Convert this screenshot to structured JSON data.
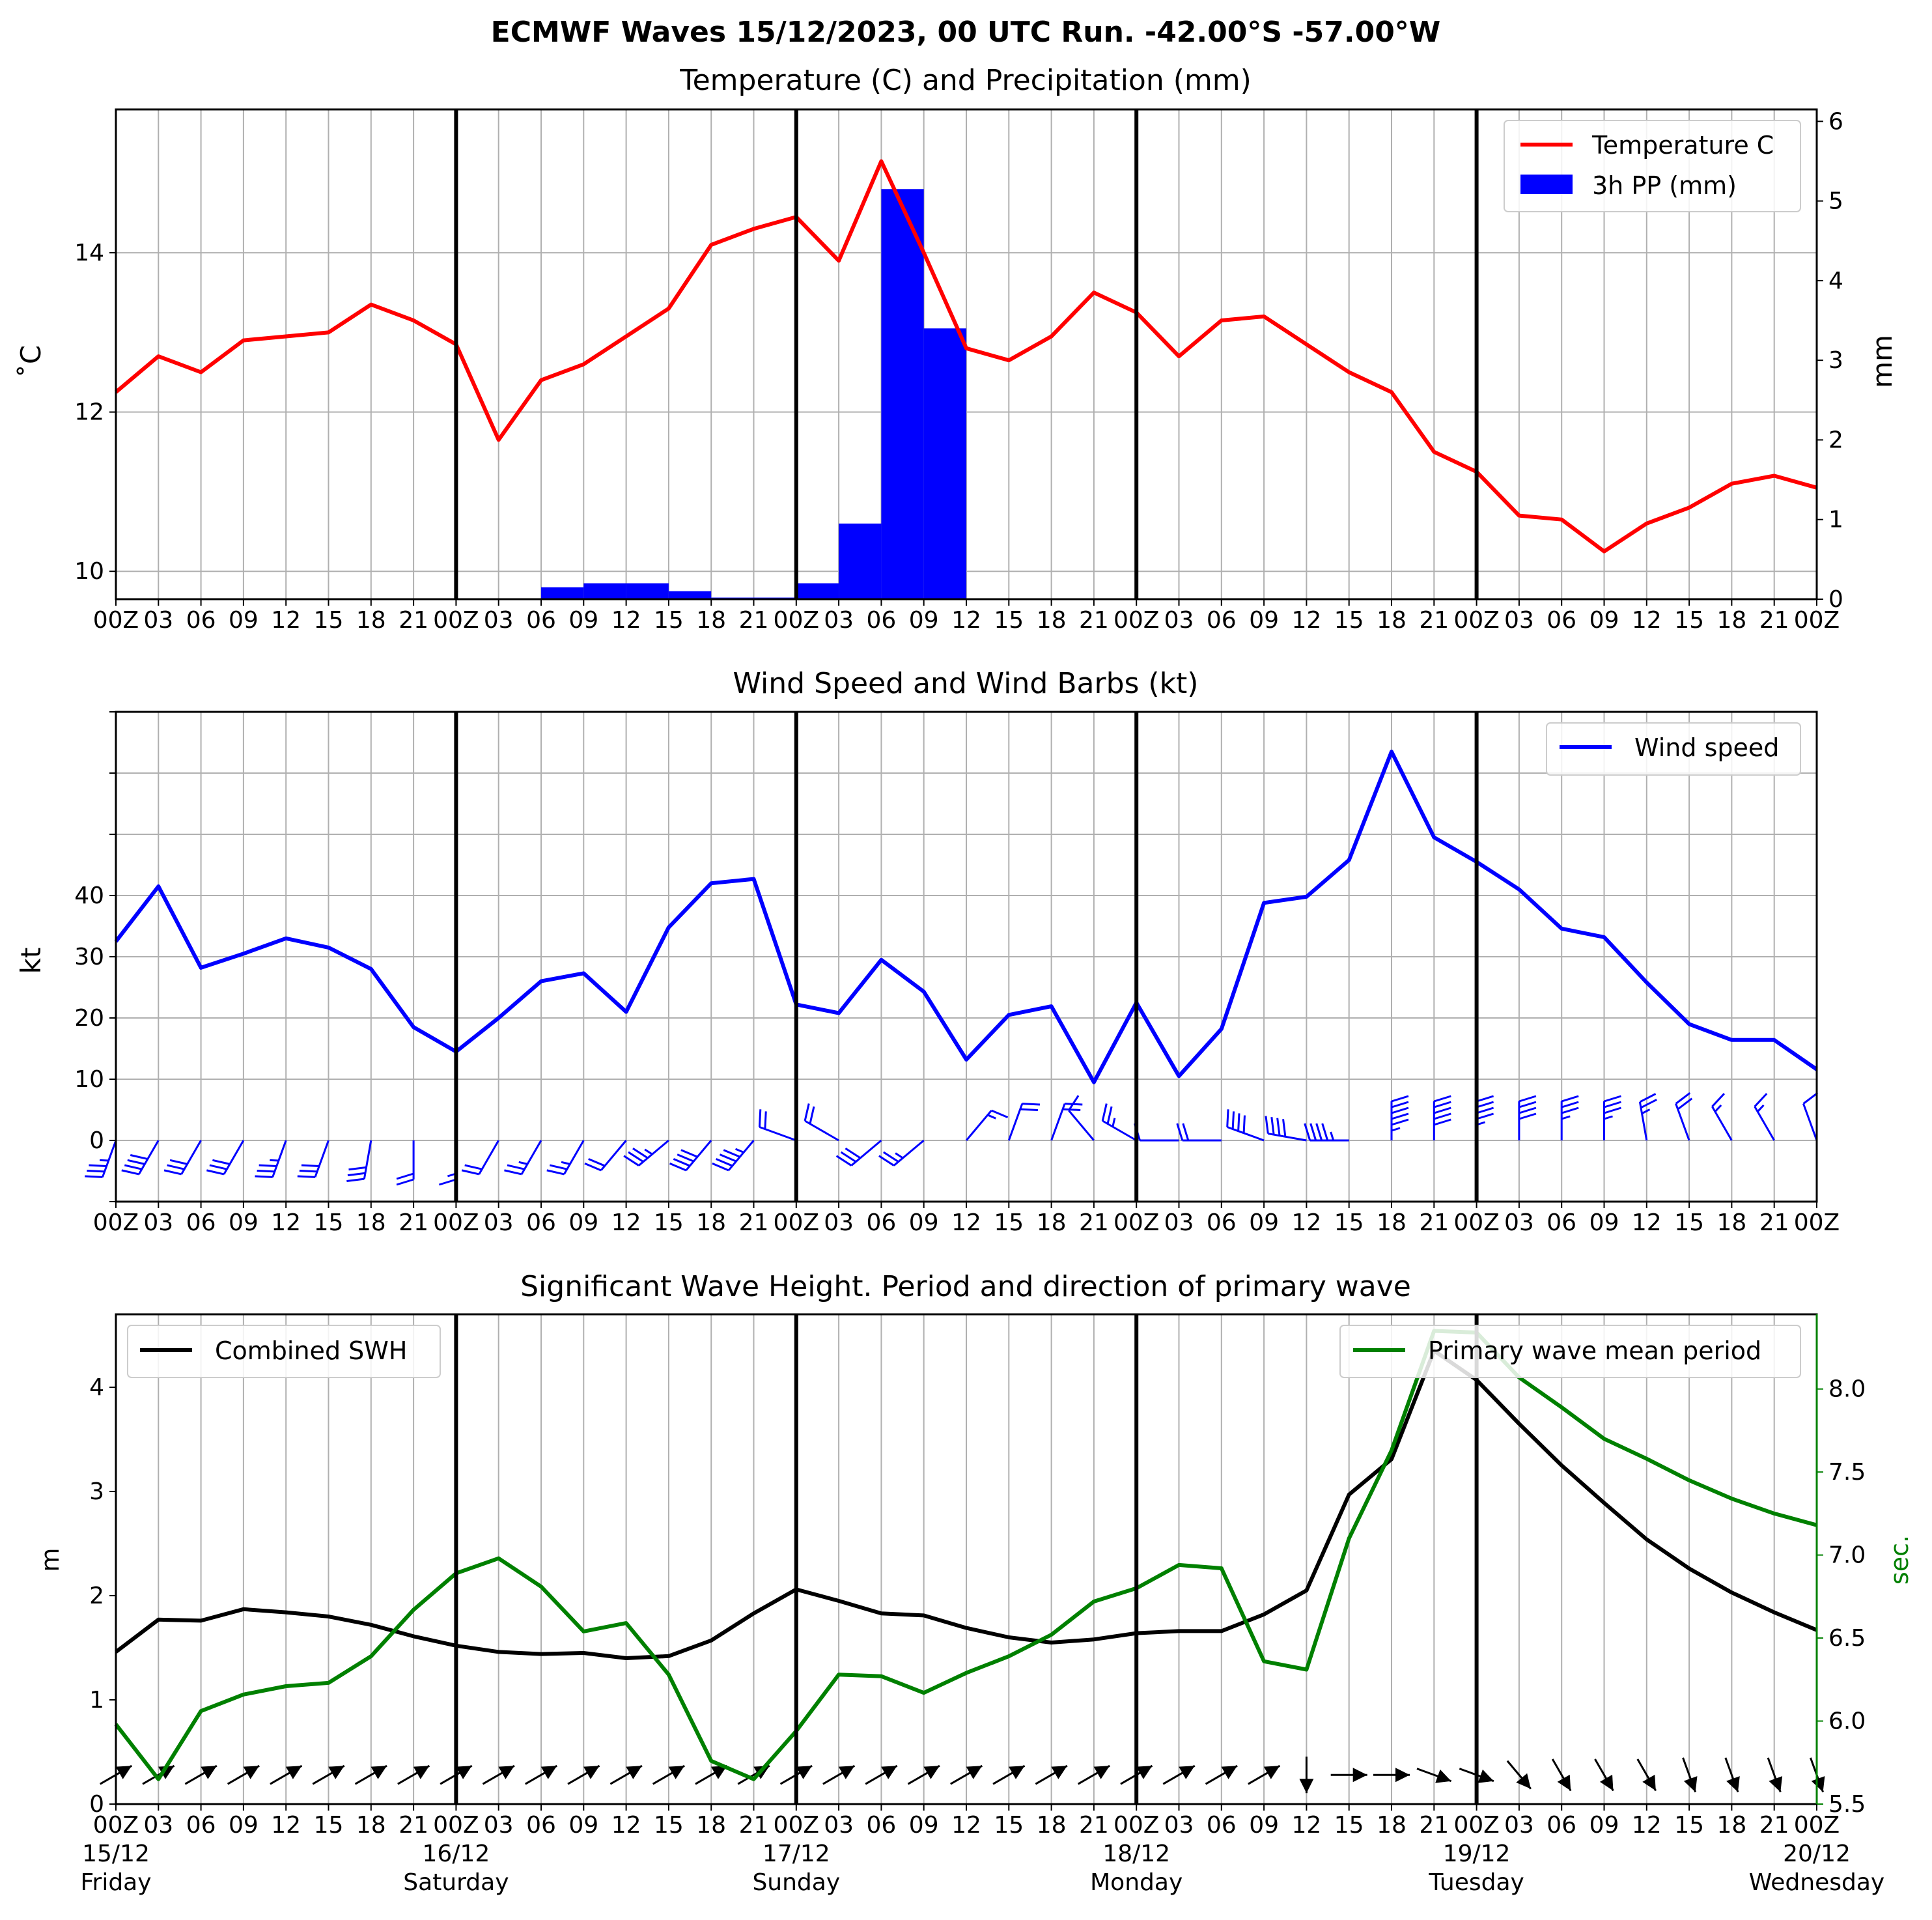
{
  "figure": {
    "title": "ECMWF Waves 15/12/2023, 00 UTC Run. -42.00°S -57.00°W"
  },
  "time_axis": {
    "hour_labels": [
      "00Z",
      "03",
      "06",
      "09",
      "12",
      "15",
      "18",
      "21",
      "00Z",
      "03",
      "06",
      "09",
      "12",
      "15",
      "18",
      "21",
      "00Z",
      "03",
      "06",
      "09",
      "12",
      "15",
      "18",
      "21",
      "00Z",
      "03",
      "06",
      "09",
      "12",
      "15",
      "18",
      "21",
      "00Z",
      "03",
      "06",
      "09",
      "12",
      "15",
      "18",
      "21",
      "00Z"
    ],
    "day_labels": [
      {
        "date": "15/12",
        "weekday": "Friday",
        "hour_index": 0
      },
      {
        "date": "16/12",
        "weekday": "Saturday",
        "hour_index": 8
      },
      {
        "date": "17/12",
        "weekday": "Sunday",
        "hour_index": 16
      },
      {
        "date": "18/12",
        "weekday": "Monday",
        "hour_index": 24
      },
      {
        "date": "19/12",
        "weekday": "Tuesday",
        "hour_index": 32
      },
      {
        "date": "20/12",
        "weekday": "Wednesday",
        "hour_index": 40
      }
    ]
  },
  "colors": {
    "temperature": "#ff0000",
    "precip": "#0000ff",
    "wind": "#0000ff",
    "swh": "#000000",
    "period": "#008000",
    "grid": "#b0b0b0",
    "day_divider": "#000000"
  },
  "chart_data": [
    {
      "type": "line",
      "title": "Temperature (C) and Precipitation (mm)",
      "ylabel": "$^\\circ$C",
      "ylabel_display": "˚C",
      "ylim": [
        9.65,
        15.8
      ],
      "yticks": [
        10,
        12,
        14
      ],
      "x_hours": [
        0,
        3,
        6,
        9,
        12,
        15,
        18,
        21,
        24,
        27,
        30,
        33,
        36,
        39,
        42,
        45,
        48,
        51,
        54,
        57,
        60,
        63,
        66,
        69,
        72,
        75,
        78,
        81,
        84,
        87,
        90,
        93,
        96,
        99,
        102,
        105,
        108,
        111,
        114,
        117,
        120
      ],
      "series": [
        {
          "name": "Temperature C",
          "axis": "left",
          "values": [
            12.25,
            12.7,
            12.5,
            12.9,
            12.95,
            13.0,
            13.35,
            13.15,
            12.85,
            11.65,
            12.4,
            12.6,
            12.95,
            13.3,
            14.1,
            14.3,
            14.45,
            13.9,
            15.15,
            14.0,
            12.8,
            12.65,
            12.95,
            13.5,
            13.25,
            12.7,
            13.15,
            13.2,
            12.85,
            12.5,
            12.25,
            11.5,
            11.25,
            10.7,
            10.65,
            10.25,
            10.6,
            10.8,
            11.1,
            11.2,
            11.05
          ]
        },
        {
          "name": "3h PP (mm)",
          "type": "bar",
          "axis": "right",
          "values": [
            0,
            0,
            0,
            0,
            0,
            0,
            0,
            0,
            0,
            0,
            0.15,
            0.2,
            0.2,
            0.1,
            0.02,
            0.02,
            0.2,
            0.95,
            5.15,
            3.4,
            0,
            0,
            0,
            0,
            0,
            0,
            0,
            0,
            0,
            0,
            0,
            0,
            0,
            0,
            0,
            0,
            0,
            0,
            0,
            0,
            0
          ]
        }
      ],
      "right_axis": {
        "ylabel": "mm",
        "ylim": [
          0,
          6.15
        ],
        "yticks": [
          0,
          1,
          2,
          3,
          4,
          5,
          6
        ]
      },
      "legend": "top-right",
      "grid": true
    },
    {
      "type": "line",
      "title": "Wind Speed and Wind Barbs (kt)",
      "ylabel": "kt",
      "ylim": [
        -10,
        70
      ],
      "yticks": [
        0,
        10,
        20,
        30,
        40
      ],
      "x_hours": [
        0,
        3,
        6,
        9,
        12,
        15,
        18,
        21,
        24,
        27,
        30,
        33,
        36,
        39,
        42,
        45,
        48,
        51,
        54,
        57,
        60,
        63,
        66,
        69,
        72,
        75,
        78,
        81,
        84,
        87,
        90,
        93,
        96,
        99,
        102,
        105,
        108,
        111,
        114,
        117,
        120
      ],
      "series": [
        {
          "name": "Wind speed",
          "values": [
            32.5,
            41.5,
            28.2,
            30.5,
            33.0,
            31.5,
            28.0,
            18.5,
            14.5,
            20.0,
            26.0,
            27.3,
            21.0,
            34.8,
            42.0,
            42.7,
            22.2,
            20.8,
            29.5,
            24.3,
            13.2,
            20.5,
            21.9,
            9.5,
            22.5,
            10.5,
            18.2,
            38.8,
            39.8,
            45.8,
            63.5,
            49.5,
            45.5,
            41.0,
            34.6,
            33.2,
            25.8,
            19.0,
            16.4,
            16.4,
            11.6
          ]
        }
      ],
      "barbs": {
        "description": "wind barbs along 0 kt baseline",
        "direction_from_deg": [
          200,
          210,
          210,
          210,
          200,
          200,
          190,
          180,
          180,
          210,
          210,
          210,
          220,
          230,
          220,
          220,
          290,
          300,
          230,
          230,
          40,
          20,
          20,
          320,
          300,
          270,
          270,
          290,
          280,
          270,
          0,
          0,
          0,
          0,
          0,
          0,
          350,
          340,
          330,
          330,
          340
        ]
      },
      "legend": "top-right",
      "grid": true
    },
    {
      "type": "line",
      "title": "Significant Wave Height. Period and direction of primary wave",
      "ylabel": "m",
      "ylim": [
        0,
        4.7
      ],
      "yticks": [
        0,
        1,
        2,
        3,
        4
      ],
      "x_hours": [
        0,
        3,
        6,
        9,
        12,
        15,
        18,
        21,
        24,
        27,
        30,
        33,
        36,
        39,
        42,
        45,
        48,
        51,
        54,
        57,
        60,
        63,
        66,
        69,
        72,
        75,
        78,
        81,
        84,
        87,
        90,
        93,
        96,
        99,
        102,
        105,
        108,
        111,
        114,
        117,
        120
      ],
      "series": [
        {
          "name": "Combined SWH",
          "axis": "left",
          "values": [
            1.46,
            1.77,
            1.76,
            1.87,
            1.84,
            1.8,
            1.72,
            1.61,
            1.52,
            1.46,
            1.44,
            1.45,
            1.4,
            1.42,
            1.57,
            1.83,
            2.06,
            1.95,
            1.83,
            1.81,
            1.69,
            1.6,
            1.55,
            1.58,
            1.64,
            1.66,
            1.66,
            1.82,
            2.05,
            2.97,
            3.31,
            4.35,
            4.07,
            3.65,
            3.25,
            2.89,
            2.54,
            2.26,
            2.03,
            1.84,
            1.67
          ]
        },
        {
          "name": "Primary wave mean period",
          "axis": "right",
          "values": [
            5.98,
            5.65,
            6.06,
            6.16,
            6.21,
            6.23,
            6.39,
            6.67,
            6.89,
            6.98,
            6.81,
            6.54,
            6.59,
            6.28,
            5.76,
            5.65,
            5.94,
            6.28,
            6.27,
            6.17,
            6.29,
            6.39,
            6.52,
            6.72,
            6.8,
            6.94,
            6.92,
            6.36,
            6.31,
            7.1,
            7.63,
            8.35,
            8.34,
            8.07,
            7.89,
            7.7,
            7.58,
            7.45,
            7.34,
            7.25,
            7.18
          ]
        }
      ],
      "right_axis": {
        "ylabel": "sec.",
        "ylim": [
          5.5,
          8.45
        ],
        "yticks": [
          5.5,
          6.0,
          6.5,
          7.0,
          7.5,
          8.0
        ]
      },
      "wave_direction_to_deg": [
        60,
        60,
        60,
        60,
        60,
        60,
        60,
        60,
        60,
        60,
        60,
        60,
        60,
        60,
        60,
        60,
        60,
        60,
        60,
        60,
        60,
        60,
        60,
        60,
        60,
        60,
        60,
        60,
        180,
        90,
        90,
        110,
        110,
        140,
        150,
        150,
        150,
        160,
        160,
        160,
        160
      ],
      "legend_left": "top-left",
      "legend_right": "top-right",
      "grid": true
    }
  ]
}
